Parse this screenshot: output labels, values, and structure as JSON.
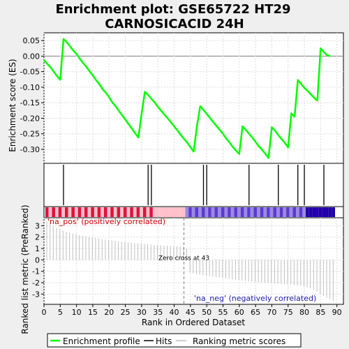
{
  "chart_data": {
    "type": "line",
    "title_line1": "Enrichment plot: GSE65722 HT29",
    "title_line2": "CARNOSICACID 24H",
    "ylabel_top": "Enrichment score (ES)",
    "ylabel_bottom": "Ranked list metric (PreRanked)",
    "xlabel": "Rank in Ordered Dataset",
    "xlim": [
      0,
      92
    ],
    "es_ylim": [
      -0.345,
      0.075
    ],
    "es_yticks": [
      "0.05",
      "0.00",
      "-0.05",
      "-0.10",
      "-0.15",
      "-0.20",
      "-0.25",
      "-0.30"
    ],
    "es_ytick_values": [
      0.05,
      0.0,
      -0.05,
      -0.1,
      -0.15,
      -0.2,
      -0.25,
      -0.3
    ],
    "metric_ylim": [
      -3.9,
      3.7
    ],
    "metric_yticks": [
      "3",
      "2",
      "1",
      "0",
      "-1",
      "-2",
      "-3"
    ],
    "metric_ytick_values": [
      3,
      2,
      1,
      0,
      -1,
      -2,
      -3
    ],
    "xticks": [
      "0",
      "5",
      "10",
      "15",
      "20",
      "25",
      "30",
      "35",
      "40",
      "45",
      "50",
      "55",
      "60",
      "65",
      "70",
      "75",
      "80",
      "85",
      "90"
    ],
    "xtick_values": [
      0,
      5,
      10,
      15,
      20,
      25,
      30,
      35,
      40,
      45,
      50,
      55,
      60,
      65,
      70,
      75,
      80,
      85,
      90
    ],
    "es_x": [
      0,
      1,
      2,
      3,
      4,
      5,
      6,
      7,
      8,
      9,
      10,
      11,
      12,
      13,
      14,
      15,
      16,
      17,
      18,
      19,
      20,
      21,
      22,
      23,
      24,
      25,
      26,
      27,
      28,
      29,
      30,
      31,
      32,
      33,
      34,
      35,
      36,
      37,
      38,
      39,
      40,
      41,
      42,
      43,
      44,
      45,
      46,
      47,
      48,
      49,
      50,
      51,
      52,
      53,
      54,
      55,
      56,
      57,
      58,
      59,
      60,
      61,
      62,
      63,
      64,
      65,
      66,
      67,
      68,
      69,
      70,
      71,
      72,
      73,
      74,
      75,
      76,
      77,
      78,
      79,
      80,
      81,
      82,
      83,
      84,
      85,
      86,
      87,
      88
    ],
    "es_y": [
      -0.012,
      -0.025,
      -0.036,
      -0.05,
      -0.064,
      -0.076,
      0.055,
      0.045,
      0.032,
      0.018,
      0.007,
      -0.008,
      -0.022,
      -0.034,
      -0.049,
      -0.062,
      -0.077,
      -0.09,
      -0.106,
      -0.118,
      -0.132,
      -0.149,
      -0.161,
      -0.176,
      -0.19,
      -0.204,
      -0.219,
      -0.233,
      -0.248,
      -0.262,
      -0.185,
      -0.115,
      -0.125,
      -0.137,
      -0.149,
      -0.163,
      -0.176,
      -0.188,
      -0.2,
      -0.213,
      -0.226,
      -0.239,
      -0.253,
      -0.266,
      -0.278,
      -0.293,
      -0.307,
      -0.225,
      -0.161,
      -0.173,
      -0.186,
      -0.199,
      -0.212,
      -0.225,
      -0.237,
      -0.25,
      -0.265,
      -0.278,
      -0.292,
      -0.304,
      -0.315,
      -0.226,
      -0.237,
      -0.25,
      -0.262,
      -0.276,
      -0.29,
      -0.301,
      -0.314,
      -0.328,
      -0.229,
      -0.24,
      -0.254,
      -0.267,
      -0.279,
      -0.294,
      -0.184,
      -0.195,
      -0.077,
      -0.089,
      -0.102,
      -0.112,
      -0.123,
      -0.134,
      -0.143,
      0.025,
      0.013,
      0.003,
      0.0
    ],
    "es_ymin_val": -0.345,
    "hits": [
      6,
      32,
      33,
      49,
      50,
      63,
      72,
      78,
      80,
      86
    ],
    "metric_x": [
      0,
      1,
      2,
      3,
      4,
      5,
      6,
      7,
      8,
      9,
      10,
      11,
      12,
      13,
      14,
      15,
      16,
      17,
      18,
      19,
      20,
      21,
      22,
      23,
      24,
      25,
      26,
      27,
      28,
      29,
      30,
      31,
      32,
      33,
      34,
      35,
      36,
      37,
      38,
      39,
      40,
      41,
      42,
      43,
      44,
      45,
      46,
      47,
      48,
      49,
      50,
      51,
      52,
      53,
      54,
      55,
      56,
      57,
      58,
      59,
      60,
      61,
      62,
      63,
      64,
      65,
      66,
      67,
      68,
      69,
      70,
      71,
      72,
      73,
      74,
      75,
      76,
      77,
      78,
      79,
      80,
      81,
      82,
      83,
      84,
      85,
      86,
      87,
      88
    ],
    "metric_values": [
      3.4,
      3.15,
      2.95,
      2.8,
      2.68,
      2.57,
      2.47,
      2.39,
      2.31,
      2.25,
      2.18,
      2.12,
      2.07,
      2.02,
      1.97,
      1.92,
      1.88,
      1.84,
      1.8,
      1.76,
      1.72,
      1.69,
      1.65,
      1.62,
      1.58,
      1.55,
      1.52,
      1.49,
      1.46,
      1.43,
      1.4,
      1.38,
      1.35,
      1.33,
      1.31,
      1.29,
      1.27,
      1.25,
      1.23,
      1.21,
      1.2,
      1.18,
      1.16,
      1.0,
      -1.15,
      -1.2,
      -1.25,
      -1.3,
      -1.34,
      -1.38,
      -1.42,
      -1.46,
      -1.5,
      -1.54,
      -1.58,
      -1.62,
      -1.66,
      -1.7,
      -1.73,
      -1.77,
      -1.8,
      -1.83,
      -1.86,
      -1.89,
      -1.92,
      -1.95,
      -1.98,
      -2.0,
      -2.02,
      -2.04,
      -2.06,
      -2.08,
      -2.1,
      -2.12,
      -2.14,
      -2.17,
      -2.2,
      -2.24,
      -2.28,
      -2.33,
      -2.4,
      -2.5,
      -2.65,
      -2.8,
      -3.0,
      -3.15,
      -3.3,
      -3.45,
      -3.6
    ],
    "zero_cross_x": 43,
    "zero_cross_label": "Zero cross at 43",
    "pos_label": "'na_pos' (positively correlated)",
    "neg_label": "'na_neg' (negatively correlated)",
    "legend": [
      "Enrichment profile",
      "Hits",
      "Ranking metric scores"
    ],
    "colors": {
      "es_line": "#00ff00",
      "hit": "#000000",
      "metric": "#bfbfbf",
      "pos_text": "#cc0000",
      "neg_text": "#1a1aa6",
      "heat_pos": "#dc143c",
      "heat_pos_light": "#ffc0cb",
      "heat_neg": "#5b3ad0",
      "heat_neg_dark": "#2200aa",
      "zero_line": "#808080",
      "grid": "#dcdcdc"
    }
  }
}
